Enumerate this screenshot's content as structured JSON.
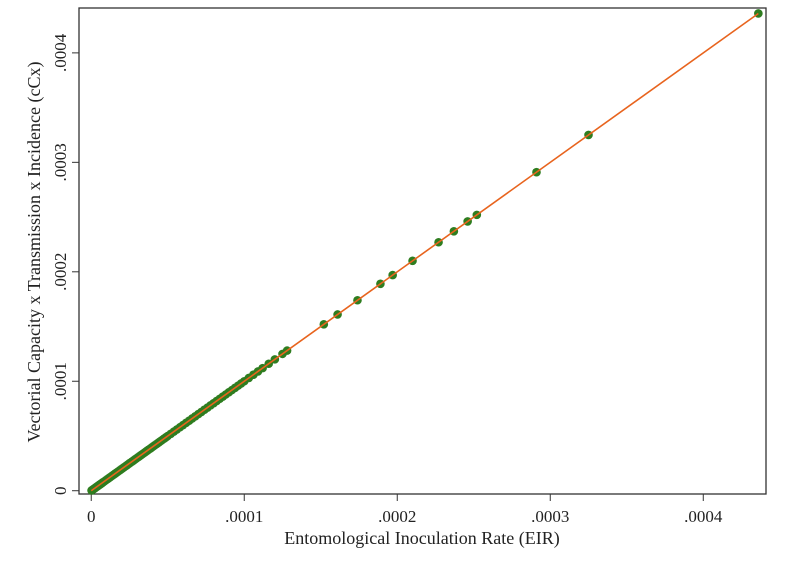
{
  "chart_data": {
    "type": "scatter",
    "xlabel": "Entomological Inoculation Rate (EIR)",
    "ylabel": "Vectorial Capacity x Transmission x Incidence (cCx)",
    "xlim": [
      -8e-06,
      0.000441
    ],
    "ylim": [
      -3e-06,
      0.000441
    ],
    "xticks": [
      0,
      0.0001,
      0.0002,
      0.0003,
      0.0004
    ],
    "xtick_labels": [
      "0",
      ".0001",
      ".0002",
      ".0003",
      ".0004"
    ],
    "yticks": [
      0,
      0.0001,
      0.0002,
      0.0003,
      0.0004
    ],
    "ytick_labels": [
      "0",
      ".0001",
      ".0002",
      ".0003",
      ".0004"
    ],
    "grid": false,
    "legend": "none",
    "fit_line": {
      "x": [
        0,
        0.000436
      ],
      "y": [
        0,
        0.000436
      ],
      "color": "#e8641e"
    },
    "marker_color": "#2e7d1f",
    "series": [
      {
        "x": [
          2e-07,
          5e-07,
          1e-06,
          1.5e-06,
          2e-06,
          2.5e-06,
          3e-06,
          3.5e-06,
          4e-06,
          4.5e-06,
          5e-06,
          5.5e-06,
          6e-06,
          6.5e-06,
          7e-06,
          7.5e-06,
          8e-06,
          9e-06,
          1e-05,
          1.1e-05,
          1.2e-05,
          1.3e-05,
          1.4e-05,
          1.5e-05,
          1.6e-05,
          1.7e-05,
          1.8e-05,
          1.9e-05,
          2e-05,
          2.1e-05,
          2.2e-05,
          2.3e-05,
          2.4e-05,
          2.5e-05,
          2.6e-05,
          2.7e-05,
          2.8e-05,
          2.9e-05,
          3e-05,
          3.1e-05,
          3.2e-05,
          3.3e-05,
          3.4e-05,
          3.5e-05,
          3.6e-05,
          3.7e-05,
          3.8e-05,
          3.9e-05,
          4e-05,
          4.1e-05,
          4.2e-05,
          4.3e-05,
          4.4e-05,
          4.5e-05,
          4.6e-05,
          4.7e-05,
          4.8e-05,
          4.9e-05,
          5e-05,
          5.2e-05,
          5.4e-05,
          5.6e-05,
          5.8e-05,
          6e-05,
          6.2e-05,
          6.4e-05,
          6.6e-05,
          6.8e-05,
          7e-05,
          7.2e-05,
          7.4e-05,
          7.6e-05,
          7.8e-05,
          8e-05,
          8.2e-05,
          8.4e-05,
          8.6e-05,
          8.8e-05,
          9e-05,
          9.2e-05,
          9.4e-05,
          9.6e-05,
          9.8e-05,
          0.0001,
          0.000103,
          0.000106,
          0.000109,
          0.000112,
          0.000116,
          0.00012,
          0.000125,
          0.000128,
          0.000152,
          0.000161,
          0.000174,
          0.000189,
          0.000197,
          0.00021,
          0.000227,
          0.000237,
          0.000246,
          0.000252,
          0.000291,
          0.000325,
          0.000436
        ],
        "y": [
          2e-07,
          5e-07,
          1e-06,
          1.5e-06,
          2e-06,
          2.5e-06,
          3e-06,
          3.5e-06,
          4e-06,
          4.5e-06,
          5e-06,
          5.5e-06,
          6e-06,
          6.5e-06,
          7e-06,
          7.5e-06,
          8e-06,
          9e-06,
          1e-05,
          1.1e-05,
          1.2e-05,
          1.3e-05,
          1.4e-05,
          1.5e-05,
          1.6e-05,
          1.7e-05,
          1.8e-05,
          1.9e-05,
          2e-05,
          2.1e-05,
          2.2e-05,
          2.3e-05,
          2.4e-05,
          2.5e-05,
          2.6e-05,
          2.7e-05,
          2.8e-05,
          2.9e-05,
          3e-05,
          3.1e-05,
          3.2e-05,
          3.3e-05,
          3.4e-05,
          3.5e-05,
          3.6e-05,
          3.7e-05,
          3.8e-05,
          3.9e-05,
          4e-05,
          4.1e-05,
          4.2e-05,
          4.3e-05,
          4.4e-05,
          4.5e-05,
          4.6e-05,
          4.7e-05,
          4.8e-05,
          4.9e-05,
          5e-05,
          5.2e-05,
          5.4e-05,
          5.6e-05,
          5.8e-05,
          6e-05,
          6.2e-05,
          6.4e-05,
          6.6e-05,
          6.8e-05,
          7e-05,
          7.2e-05,
          7.4e-05,
          7.6e-05,
          7.8e-05,
          8e-05,
          8.2e-05,
          8.4e-05,
          8.6e-05,
          8.8e-05,
          9e-05,
          9.2e-05,
          9.4e-05,
          9.6e-05,
          9.8e-05,
          0.0001,
          0.000103,
          0.000106,
          0.000109,
          0.000112,
          0.000116,
          0.00012,
          0.000125,
          0.000128,
          0.000152,
          0.000161,
          0.000174,
          0.000189,
          0.000197,
          0.00021,
          0.000227,
          0.000237,
          0.000246,
          0.000252,
          0.000291,
          0.000325,
          0.000436
        ]
      }
    ]
  }
}
